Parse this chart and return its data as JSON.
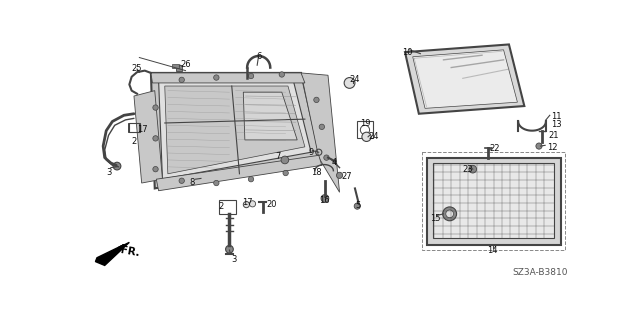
{
  "bg_color": "#ffffff",
  "diagram_code": "SZ3A-B3810",
  "fr_label": "FR.",
  "line_color": "#444444",
  "text_color": "#111111",
  "gray_fill": "#c8c8c8",
  "light_gray": "#e0e0e0",
  "dark_gray": "#888888"
}
